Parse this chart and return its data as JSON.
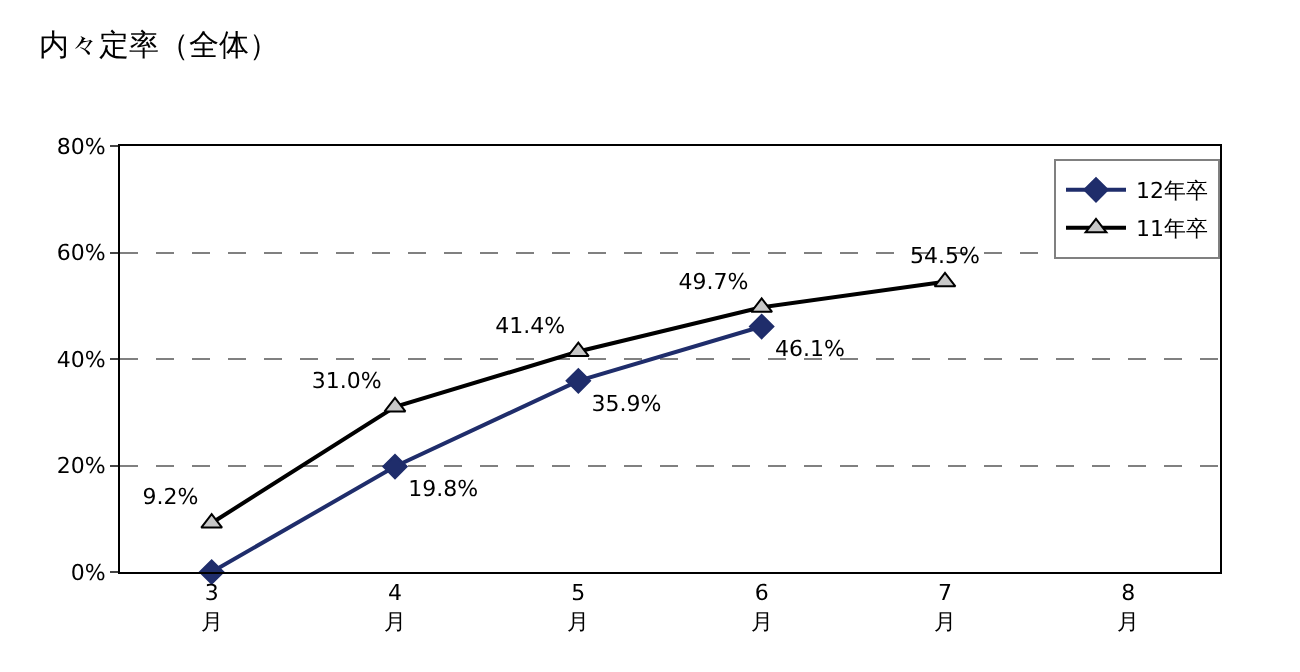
{
  "chart_data": {
    "type": "line",
    "title": "内々定率（全体）",
    "categories": [
      "3\n月",
      "4\n月",
      "5\n月",
      "6\n月",
      "7\n月",
      "8\n月"
    ],
    "series": [
      {
        "name": "12年卒",
        "color": "#1f2d6b",
        "marker": "diamond",
        "values": [
          0,
          19.8,
          35.9,
          46.1,
          null,
          null
        ],
        "value_labels": [
          null,
          "19.8%",
          "35.9%",
          "46.1%",
          null,
          null
        ]
      },
      {
        "name": "11年卒",
        "color": "#000000",
        "marker": "triangle",
        "values": [
          9.2,
          31.0,
          41.4,
          49.7,
          54.5,
          null
        ],
        "value_labels": [
          "9.2%",
          "31.0%",
          "41.4%",
          "49.7%",
          "54.5%",
          null
        ]
      }
    ],
    "ylim": [
      0,
      80
    ],
    "yticks": [
      {
        "value": 0,
        "label": "0%"
      },
      {
        "value": 20,
        "label": "20%"
      },
      {
        "value": 40,
        "label": "40%"
      },
      {
        "value": 60,
        "label": "60%"
      },
      {
        "value": 80,
        "label": "80%"
      }
    ],
    "grid": "y",
    "legend": "top right"
  }
}
